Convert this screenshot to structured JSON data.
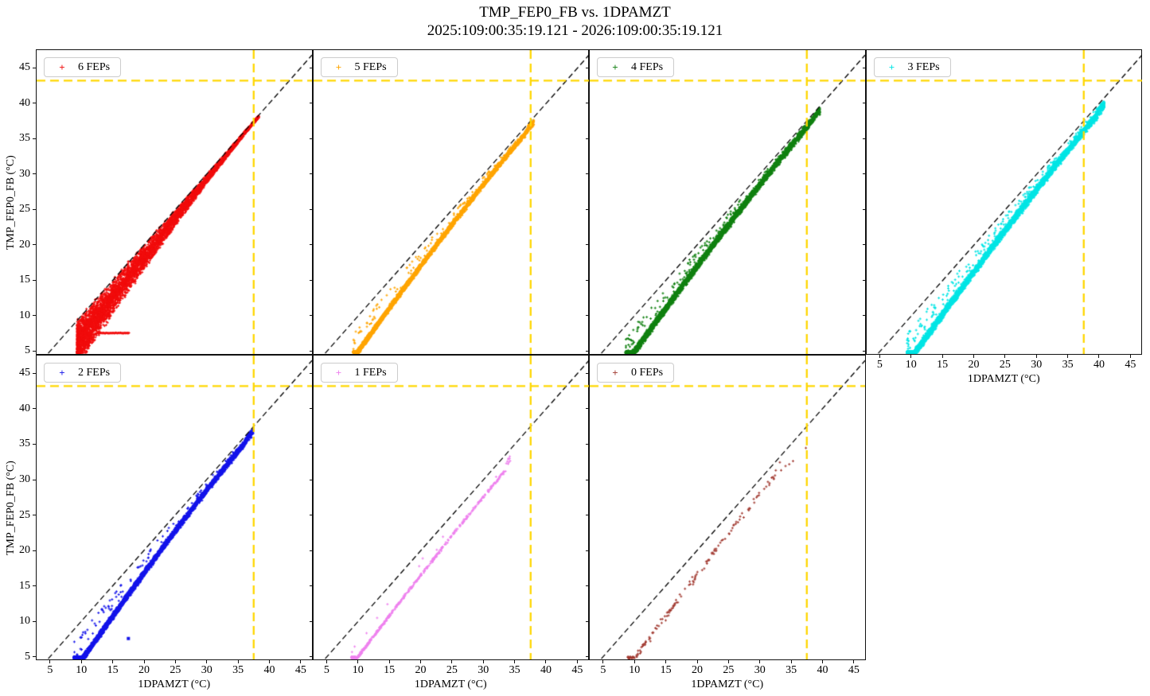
{
  "figure": {
    "title": "TMP_FEP0_FB vs. 1DPAMZT",
    "subtitle": "2025:109:00:35:19.121 - 2026:109:00:35:19.121"
  },
  "axes": {
    "xlabel": "1DPAMZT (°C)",
    "ylabel": "TMP_FEP0_FB (°C)",
    "xticks": [
      5,
      10,
      15,
      20,
      25,
      30,
      35,
      40,
      45
    ],
    "yticks": [
      5,
      10,
      15,
      20,
      25,
      30,
      35,
      40,
      45
    ],
    "xlim": [
      2.85,
      46.8
    ],
    "ylim": [
      4.6,
      47.5
    ],
    "grid": false
  },
  "reference_lines": {
    "identity": {
      "desc": "y = x",
      "color": "#000000",
      "style": "dashed"
    },
    "x_limit": {
      "value": 37.5,
      "color": "#ffd700",
      "style": "dashed"
    },
    "y_limit": {
      "value": 43.2,
      "color": "#ffd700",
      "style": "dashed"
    }
  },
  "legend_position": "upper left",
  "chart_data": [
    {
      "type": "scatter",
      "label": "6 FEPs",
      "color": "#f10c0c",
      "marker": "+",
      "row": 0,
      "col": 0,
      "n_points": 5200,
      "x_range": [
        9.3,
        38.3
      ],
      "y_range": [
        4.7,
        38.6
      ],
      "relation": "wide curved band hugging y=x at high T, up to ~6 C below it at low T",
      "show_x_tick_labels": false,
      "show_y_tick_labels": true,
      "gen": {
        "mode": "wide",
        "xbias": 1.5,
        "amp": 6.3,
        "hi": 0.4,
        "pw": 1.4
      },
      "streak": {
        "y": 7.55,
        "x0": 12.4,
        "x1": 17.6,
        "n": 55
      }
    },
    {
      "type": "scatter",
      "label": "5 FEPs",
      "color": "#ffa500",
      "marker": "+",
      "row": 0,
      "col": 1,
      "n_points": 4200,
      "x_range": [
        9.2,
        38.0
      ],
      "y_range": [
        4.7,
        37.4
      ],
      "relation": "tight band ~1-5 C below y=x, tip bends up to the identity line",
      "show_x_tick_labels": false,
      "show_y_tick_labels": false,
      "gen": {
        "mode": "tight",
        "xbias": 1.35,
        "amp": 4.3,
        "hi": 0.9,
        "pw": 1.6,
        "w": 0.38,
        "out": 0.02
      }
    },
    {
      "type": "scatter",
      "label": "4 FEPs",
      "color": "#118011",
      "marker": "+",
      "row": 0,
      "col": 2,
      "n_points": 4600,
      "x_range": [
        8.6,
        39.6
      ],
      "y_range": [
        4.7,
        38.4
      ],
      "relation": "tight band ~1-5 C below y=x with sparse points toward the identity line",
      "show_x_tick_labels": false,
      "show_y_tick_labels": false,
      "gen": {
        "mode": "tight",
        "xbias": 1.3,
        "amp": 4.6,
        "hi": 0.8,
        "pw": 1.6,
        "w": 0.5,
        "out": 0.03
      }
    },
    {
      "type": "scatter",
      "label": "3 FEPs",
      "color": "#00e5e5",
      "marker": "+",
      "row": 0,
      "col": 3,
      "n_points": 5000,
      "x_range": [
        9.3,
        40.8
      ],
      "y_range": [
        4.7,
        39.2
      ],
      "relation": "thick band ~1-5 C below y=x, extends past the 37.5 C limit line",
      "show_x_tick_labels": true,
      "show_y_tick_labels": false,
      "gen": {
        "mode": "tight",
        "xbias": 1.3,
        "amp": 4.8,
        "hi": 1.3,
        "pw": 1.6,
        "w": 0.55,
        "out": 0.03
      }
    },
    {
      "type": "scatter",
      "label": "2 FEPs",
      "color": "#1414ea",
      "marker": "+",
      "row": 1,
      "col": 0,
      "n_points": 5200,
      "x_range": [
        8.8,
        37.4
      ],
      "y_range": [
        4.7,
        36.4
      ],
      "relation": "dense band ~1-6 C below y=x; one isolated point near (17.5, 7.5)",
      "show_x_tick_labels": true,
      "show_y_tick_labels": true,
      "gen": {
        "mode": "tight",
        "xbias": 1.35,
        "amp": 5.0,
        "hi": 0.9,
        "pw": 1.55,
        "w": 0.42,
        "out": 0.02
      },
      "extra_points": [
        [
          17.5,
          7.55
        ]
      ],
      "extra_marker": "square"
    },
    {
      "type": "scatter",
      "label": "1 FEPs",
      "color": "#ee82ee",
      "marker": "+",
      "row": 1,
      "col": 1,
      "n_points": 500,
      "x_range": [
        8.9,
        34.4
      ],
      "y_range": [
        4.7,
        31.8
      ],
      "relation": "sparse thin trace ~2-5 C below y=x, denser at low temperature",
      "show_x_tick_labels": true,
      "show_y_tick_labels": false,
      "gen": {
        "mode": "tight",
        "xbias": 1.6,
        "amp": 3.0,
        "hi": 2.2,
        "pw": 1.5,
        "w": 0.22,
        "out": 0.02
      }
    },
    {
      "type": "scatter",
      "label": "0 FEPs",
      "color": "#a23b32",
      "marker": "+",
      "row": 1,
      "col": 2,
      "n_points": 150,
      "x_range": [
        8.9,
        33.6
      ],
      "y_range": [
        4.7,
        34.5
      ],
      "relation": "very sparse points ~2-5 C below y=x; a few outliers up to the 37.5 C limit",
      "show_x_tick_labels": true,
      "show_y_tick_labels": false,
      "gen": {
        "mode": "tight",
        "xbias": 1.3,
        "amp": 3.8,
        "hi": 1.7,
        "pw": 1.3,
        "w": 0.55,
        "out": 0.0
      },
      "extra_points": [
        [
          37.35,
          34.45
        ],
        [
          35.3,
          32.6
        ],
        [
          34.7,
          32.15
        ],
        [
          34.1,
          31.9
        ],
        [
          33.4,
          31.3
        ]
      ]
    }
  ]
}
